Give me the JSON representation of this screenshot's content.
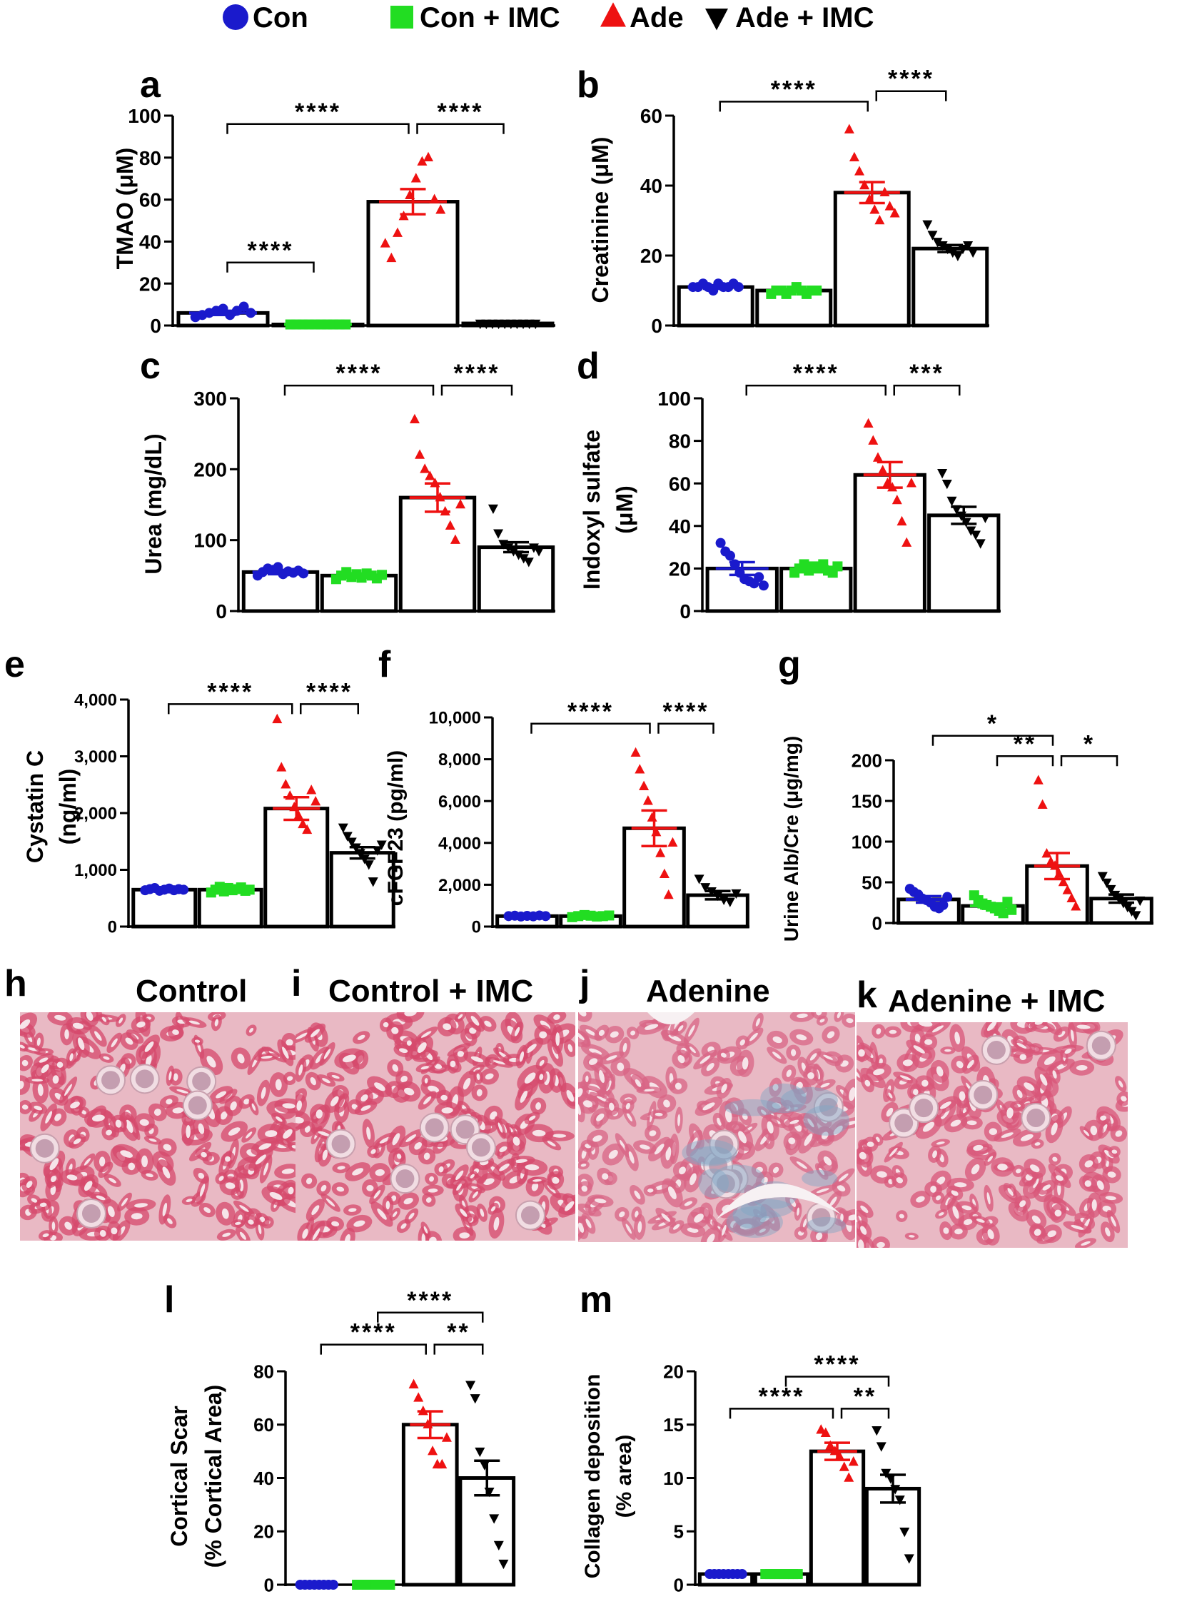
{
  "legend": {
    "items": [
      {
        "label": "Con",
        "color": "#1a1acc",
        "marker": "circle"
      },
      {
        "label": "Con + IMC",
        "color": "#22dd22",
        "marker": "square"
      },
      {
        "label": "Ade",
        "color": "#ee1111",
        "marker": "triangle-up"
      },
      {
        "label": "Ade + IMC",
        "color": "#000000",
        "marker": "triangle-down"
      }
    ]
  },
  "chart_data": [
    {
      "id": "a",
      "type": "bar",
      "ylabel": "TMAO (μM)",
      "ylabel2": "",
      "ylim": [
        0,
        100
      ],
      "yticks": [
        0,
        20,
        40,
        60,
        80,
        100
      ],
      "tick_labels": [
        "0",
        "20",
        "40",
        "60",
        "80",
        "100"
      ],
      "categories": [
        "Con",
        "Con + IMC",
        "Ade",
        "Ade + IMC"
      ],
      "values": [
        6,
        0.5,
        59,
        1
      ],
      "sem": [
        1,
        0.2,
        6,
        0.3
      ],
      "points": [
        [
          4,
          5,
          6,
          7,
          8,
          5,
          7,
          9,
          6
        ],
        [
          0.5,
          0.5,
          0.5,
          0.5,
          0.5,
          0.5,
          0.5,
          0.5,
          0.5,
          0.5
        ],
        [
          39,
          32,
          44,
          52,
          62,
          70,
          78,
          80,
          60,
          55
        ],
        [
          1,
          1,
          1,
          1,
          1,
          1,
          1,
          1,
          1,
          1
        ]
      ],
      "brackets": [
        {
          "from": 0,
          "to": 1,
          "y": 30,
          "label": "****"
        },
        {
          "from": 0,
          "to": 2,
          "y": 96,
          "label": "****"
        },
        {
          "from": 2,
          "to": 3,
          "y": 96,
          "label": "****"
        }
      ]
    },
    {
      "id": "b",
      "type": "bar",
      "ylabel": "Creatinine (μM)",
      "ylabel2": "",
      "ylim": [
        0,
        60
      ],
      "yticks": [
        0,
        20,
        40,
        60
      ],
      "tick_labels": [
        "0",
        "20",
        "40",
        "60"
      ],
      "categories": [
        "Con",
        "Con + IMC",
        "Ade",
        "Ade + IMC"
      ],
      "values": [
        11,
        10,
        38,
        22
      ],
      "sem": [
        0.5,
        0.4,
        3,
        1
      ],
      "points": [
        [
          11,
          11,
          12,
          11,
          10,
          12,
          11,
          11,
          12,
          11
        ],
        [
          9,
          10,
          10,
          9,
          10,
          11,
          10,
          9,
          10,
          10
        ],
        [
          56,
          48,
          44,
          40,
          36,
          33,
          30,
          38,
          34,
          32
        ],
        [
          29,
          26,
          24,
          23,
          22,
          21,
          20,
          22,
          23,
          21
        ]
      ],
      "brackets": [
        {
          "from": 0,
          "to": 2,
          "y": 64,
          "label": "****"
        },
        {
          "from": 2,
          "to": 3,
          "y": 67,
          "label": "****"
        }
      ]
    },
    {
      "id": "c",
      "type": "bar",
      "ylabel": "Urea (mg/dL)",
      "ylabel2": "",
      "ylim": [
        0,
        300
      ],
      "yticks": [
        0,
        100,
        200,
        300
      ],
      "tick_labels": [
        "0",
        "100",
        "200",
        "300"
      ],
      "categories": [
        "Con",
        "Con + IMC",
        "Ade",
        "Ade + IMC"
      ],
      "values": [
        55,
        50,
        160,
        90
      ],
      "sem": [
        3,
        3,
        20,
        7
      ],
      "points": [
        [
          50,
          55,
          60,
          58,
          62,
          52,
          56,
          54,
          57,
          53
        ],
        [
          45,
          50,
          55,
          48,
          52,
          47,
          53,
          50,
          46,
          51
        ],
        [
          270,
          220,
          200,
          190,
          180,
          160,
          140,
          120,
          100,
          150
        ],
        [
          145,
          110,
          95,
          90,
          85,
          80,
          75,
          70,
          90,
          85
        ]
      ],
      "brackets": [
        {
          "from": 0,
          "to": 2,
          "y": 318,
          "label": "****"
        },
        {
          "from": 2,
          "to": 3,
          "y": 318,
          "label": "****"
        }
      ]
    },
    {
      "id": "d",
      "type": "bar",
      "ylabel": "Indoxyl sulfate",
      "ylabel2": "(μM)",
      "ylim": [
        0,
        100
      ],
      "yticks": [
        0,
        20,
        40,
        60,
        80,
        100
      ],
      "tick_labels": [
        "0",
        "20",
        "40",
        "60",
        "80",
        "100"
      ],
      "categories": [
        "Con",
        "Con + IMC",
        "Ade",
        "Ade + IMC"
      ],
      "values": [
        20,
        20,
        64,
        45
      ],
      "sem": [
        3,
        1,
        6,
        4
      ],
      "points": [
        [
          32,
          28,
          26,
          22,
          18,
          15,
          14,
          13,
          16,
          12
        ],
        [
          18,
          20,
          22,
          19,
          21,
          20,
          22,
          19,
          18,
          21
        ],
        [
          88,
          80,
          72,
          66,
          60,
          58,
          52,
          42,
          32,
          60
        ],
        [
          65,
          60,
          52,
          48,
          45,
          42,
          38,
          36,
          32,
          44
        ]
      ],
      "brackets": [
        {
          "from": 0,
          "to": 2,
          "y": 106,
          "label": "****"
        },
        {
          "from": 2,
          "to": 3,
          "y": 106,
          "label": "***"
        }
      ]
    },
    {
      "id": "e",
      "type": "bar",
      "ylabel": "Cystatin C",
      "ylabel2": "(ng/ml)",
      "ylim": [
        0,
        4000
      ],
      "yticks": [
        0,
        1000,
        2000,
        3000,
        4000
      ],
      "tick_labels": [
        "0",
        "1,000",
        "2,000",
        "3,000",
        "4,000"
      ],
      "categories": [
        "Con",
        "Con + IMC",
        "Ade",
        "Ade + IMC"
      ],
      "values": [
        650,
        650,
        2080,
        1300
      ],
      "sem": [
        20,
        20,
        200,
        100
      ],
      "points": [
        [
          640,
          660,
          680,
          630,
          650,
          670,
          640,
          660,
          650
        ],
        [
          600,
          650,
          700,
          620,
          680,
          640,
          660,
          690,
          630,
          650
        ],
        [
          3650,
          2800,
          2500,
          2300,
          2100,
          1950,
          1800,
          1700,
          2400,
          2200
        ],
        [
          1750,
          1600,
          1500,
          1400,
          1300,
          1200,
          1100,
          800,
          1350,
          1450
        ]
      ],
      "brackets": [
        {
          "from": 0,
          "to": 2,
          "y": 3920,
          "label": "****"
        },
        {
          "from": 2,
          "to": 3,
          "y": 3920,
          "label": "****"
        }
      ]
    },
    {
      "id": "f",
      "type": "bar",
      "ylabel": "cFGF23 (pg/ml)",
      "ylabel2": "",
      "ylim": [
        0,
        10000
      ],
      "yticks": [
        0,
        2000,
        4000,
        6000,
        8000,
        10000
      ],
      "tick_labels": [
        "0",
        "2,000",
        "4,000",
        "6,000",
        "8,000",
        "10,000"
      ],
      "categories": [
        "Con",
        "Con + IMC",
        "Ade",
        "Ade + IMC"
      ],
      "values": [
        500,
        500,
        4700,
        1500
      ],
      "sem": [
        50,
        50,
        850,
        200
      ],
      "points": [
        [
          500,
          520,
          480,
          510,
          490,
          530,
          500
        ],
        [
          450,
          500,
          550,
          520,
          480,
          500,
          530
        ],
        [
          8300,
          7500,
          6700,
          6000,
          5200,
          4500,
          3500,
          2500,
          1500,
          4000
        ],
        [
          2300,
          1900,
          1700,
          1500,
          1300,
          1200,
          1600
        ]
      ],
      "brackets": [
        {
          "from": 0,
          "to": 2,
          "y": 9700,
          "label": "****"
        },
        {
          "from": 2,
          "to": 3,
          "y": 9700,
          "label": "****"
        }
      ]
    },
    {
      "id": "g",
      "type": "bar",
      "ylabel": "Urine Alb/Cre (μg/mg)",
      "ylabel2": "",
      "ylim": [
        0,
        200
      ],
      "yticks": [
        0,
        50,
        100,
        150,
        200
      ],
      "tick_labels": [
        "0",
        "50",
        "100",
        "150",
        "200"
      ],
      "categories": [
        "Con",
        "Con + IMC",
        "Ade",
        "Ade + IMC"
      ],
      "values": [
        29,
        21,
        70,
        30
      ],
      "sem": [
        4,
        3,
        16,
        5
      ],
      "points": [
        [
          42,
          38,
          35,
          30,
          28,
          25,
          20,
          18,
          22,
          32
        ],
        [
          34,
          28,
          24,
          22,
          20,
          18,
          15,
          12,
          26,
          16
        ],
        [
          175,
          145,
          85,
          75,
          70,
          60,
          50,
          40,
          30,
          20
        ],
        [
          58,
          50,
          42,
          35,
          30,
          25,
          20,
          15,
          10,
          28
        ]
      ],
      "brackets": [
        {
          "from": 0,
          "to": 2,
          "y": 230,
          "label": "*"
        },
        {
          "from": 1,
          "to": 2,
          "y": 205,
          "label": "**"
        },
        {
          "from": 2,
          "to": 3,
          "y": 205,
          "label": "*"
        }
      ]
    },
    {
      "id": "l",
      "type": "bar",
      "ylabel": "Cortical Scar",
      "ylabel2": "(% Cortical Area)",
      "ylim": [
        0,
        80
      ],
      "yticks": [
        0,
        20,
        40,
        60,
        80
      ],
      "tick_labels": [
        "0",
        "20",
        "40",
        "60",
        "80"
      ],
      "categories": [
        "Con",
        "Con + IMC",
        "Ade",
        "Ade + IMC"
      ],
      "values": [
        0,
        0,
        60,
        40
      ],
      "sem": [
        0,
        0,
        5,
        6.5
      ],
      "points": [
        [
          0,
          0,
          0,
          0,
          0,
          0,
          0,
          0
        ],
        [
          0,
          0,
          0,
          0,
          0,
          0,
          0,
          0
        ],
        [
          75,
          70,
          65,
          60,
          50,
          45,
          45,
          55
        ],
        [
          75,
          70,
          50,
          45,
          35,
          25,
          15,
          8
        ]
      ],
      "brackets": [
        {
          "from": 0,
          "to": 2,
          "y": 90,
          "label": "****"
        },
        {
          "from": 1,
          "to": 3,
          "y": 102,
          "label": "****"
        },
        {
          "from": 2,
          "to": 3,
          "y": 90,
          "label": "**"
        }
      ]
    },
    {
      "id": "m",
      "type": "bar",
      "ylabel": "Collagen deposition",
      "ylabel2": "(% area)",
      "ylim": [
        0,
        20
      ],
      "yticks": [
        0,
        5,
        10,
        15,
        20
      ],
      "tick_labels": [
        "0",
        "5",
        "10",
        "15",
        "20"
      ],
      "categories": [
        "Con",
        "Con + IMC",
        "Ade",
        "Ade + IMC"
      ],
      "values": [
        1,
        1,
        12.5,
        9
      ],
      "sem": [
        0.1,
        0.1,
        0.8,
        1.3
      ],
      "points": [
        [
          1,
          1,
          1,
          1,
          1,
          1,
          1,
          1
        ],
        [
          1,
          1,
          1,
          1,
          1,
          1,
          1,
          1
        ],
        [
          14.5,
          14.2,
          13,
          12.5,
          12,
          11,
          10,
          11.5
        ],
        [
          14.5,
          13,
          10.5,
          10,
          9,
          8,
          5,
          2.5
        ]
      ],
      "brackets": [
        {
          "from": 0,
          "to": 2,
          "y": 16.5,
          "label": "****"
        },
        {
          "from": 1,
          "to": 3,
          "y": 19.5,
          "label": "****"
        },
        {
          "from": 2,
          "to": 3,
          "y": 16.5,
          "label": "**"
        }
      ]
    }
  ],
  "panel_labels": {
    "a": "a",
    "b": "b",
    "c": "c",
    "d": "d",
    "e": "e",
    "f": "f",
    "g": "g",
    "h": "h",
    "i": "i",
    "j": "j",
    "k": "k",
    "l": "l",
    "m": "m"
  },
  "micrographs": [
    {
      "letter": "h",
      "title": "Control",
      "stain": "#d64a6c",
      "fibrosis": false
    },
    {
      "letter": "i",
      "title": "Control + IMC",
      "stain": "#d64a6c",
      "fibrosis": false
    },
    {
      "letter": "j",
      "title": "Adenine",
      "stain": "#d86686",
      "fibrosis": true
    },
    {
      "letter": "k",
      "title": "Adenine + IMC",
      "stain": "#d8577a",
      "fibrosis": false
    }
  ]
}
